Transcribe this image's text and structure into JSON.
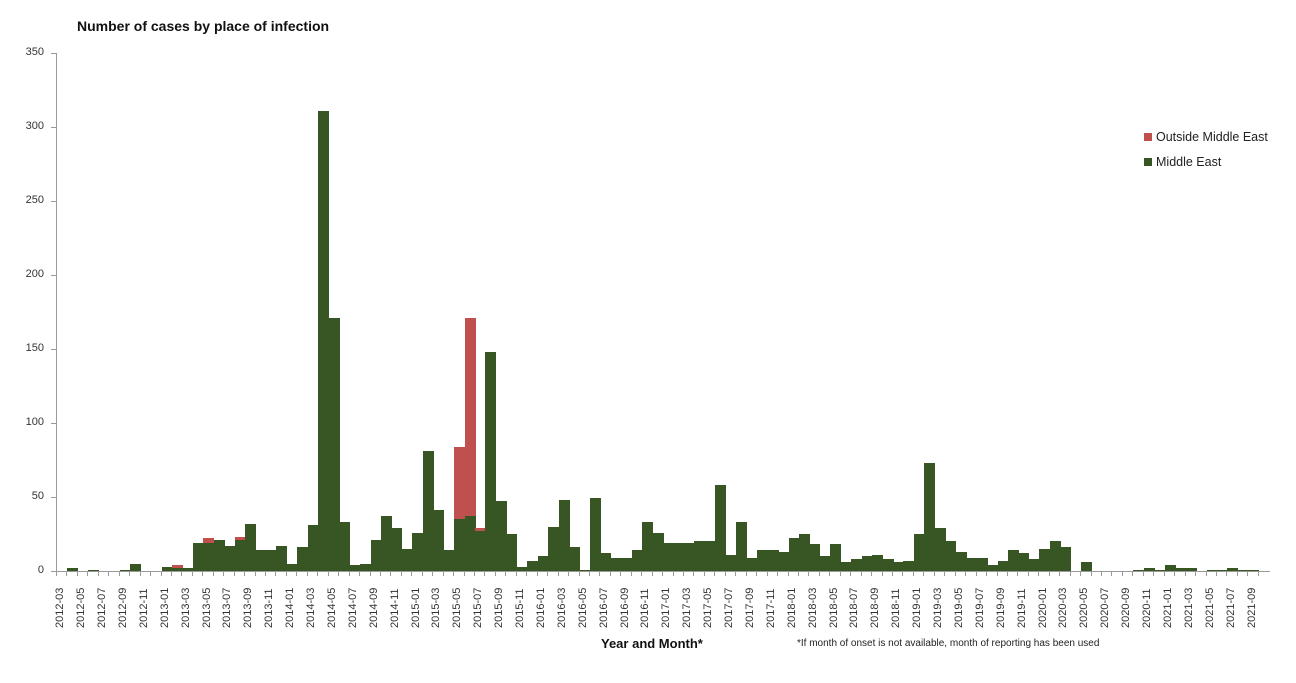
{
  "page": {
    "title": "Number of cases by place of infection",
    "x_axis_title": "Year and Month*",
    "footnote": "*If month of onset is not available, month of reporting has been used"
  },
  "legend": [
    {
      "label": "Outside Middle East",
      "color": "#c0504d"
    },
    {
      "label": "Middle East",
      "color": "#375623"
    }
  ],
  "chart_data": {
    "type": "bar",
    "stacked": true,
    "title": "Number of cases by place of infection",
    "xlabel": "Year and Month*",
    "ylabel": "",
    "ylim": [
      0,
      350
    ],
    "yticks": [
      0,
      50,
      100,
      150,
      200,
      250,
      300,
      350
    ],
    "grid": false,
    "legend_position": "right",
    "annotations": [
      "*If month of onset is not available, month of reporting has been used"
    ],
    "x_tick_labels": [
      "2012-03",
      "2012-05",
      "2012-07",
      "2012-09",
      "2012-11",
      "2013-01",
      "2013-03",
      "2013-05",
      "2013-07",
      "2013-09",
      "2013-11",
      "2014-01",
      "2014-03",
      "2014-05",
      "2014-07",
      "2014-09",
      "2014-11",
      "2015-01",
      "2015-03",
      "2015-05",
      "2015-07",
      "2015-09",
      "2015-11",
      "2016-01",
      "2016-03",
      "2016-05",
      "2016-07",
      "2016-09",
      "2016-11",
      "2017-01",
      "2017-03",
      "2017-05",
      "2017-07",
      "2017-09",
      "2017-11",
      "2018-01",
      "2018-03",
      "2018-05",
      "2018-07",
      "2018-09",
      "2018-11",
      "2019-01",
      "2019-03",
      "2019-05",
      "2019-07",
      "2019-09",
      "2019-11",
      "2020-01",
      "2020-03",
      "2020-05",
      "2020-07",
      "2020-09",
      "2020-11",
      "2021-01",
      "2021-03",
      "2021-05",
      "2021-07",
      "2021-09"
    ],
    "categories": [
      "2012-03",
      "2012-04",
      "2012-05",
      "2012-06",
      "2012-07",
      "2012-08",
      "2012-09",
      "2012-10",
      "2012-11",
      "2012-12",
      "2013-01",
      "2013-02",
      "2013-03",
      "2013-04",
      "2013-05",
      "2013-06",
      "2013-07",
      "2013-08",
      "2013-09",
      "2013-10",
      "2013-11",
      "2013-12",
      "2014-01",
      "2014-02",
      "2014-03",
      "2014-04",
      "2014-05",
      "2014-06",
      "2014-07",
      "2014-08",
      "2014-09",
      "2014-10",
      "2014-11",
      "2014-12",
      "2015-01",
      "2015-02",
      "2015-03",
      "2015-04",
      "2015-05",
      "2015-06",
      "2015-07",
      "2015-08",
      "2015-09",
      "2015-10",
      "2015-11",
      "2015-12",
      "2016-01",
      "2016-02",
      "2016-03",
      "2016-04",
      "2016-05",
      "2016-06",
      "2016-07",
      "2016-08",
      "2016-09",
      "2016-10",
      "2016-11",
      "2016-12",
      "2017-01",
      "2017-02",
      "2017-03",
      "2017-04",
      "2017-05",
      "2017-06",
      "2017-07",
      "2017-08",
      "2017-09",
      "2017-10",
      "2017-11",
      "2017-12",
      "2018-01",
      "2018-02",
      "2018-03",
      "2018-04",
      "2018-05",
      "2018-06",
      "2018-07",
      "2018-08",
      "2018-09",
      "2018-10",
      "2018-11",
      "2018-12",
      "2019-01",
      "2019-02",
      "2019-03",
      "2019-04",
      "2019-05",
      "2019-06",
      "2019-07",
      "2019-08",
      "2019-09",
      "2019-10",
      "2019-11",
      "2019-12",
      "2020-01",
      "2020-02",
      "2020-03",
      "2020-04",
      "2020-05",
      "2020-06",
      "2020-07",
      "2020-08",
      "2020-09",
      "2020-10",
      "2020-11",
      "2020-12",
      "2021-01",
      "2021-02",
      "2021-03",
      "2021-04",
      "2021-05",
      "2021-06",
      "2021-07",
      "2021-08",
      "2021-09"
    ],
    "series": [
      {
        "name": "Middle East",
        "color": "#375623",
        "values": [
          0,
          2,
          0,
          1,
          0,
          0,
          1,
          5,
          0,
          0,
          3,
          2,
          2,
          19,
          19,
          21,
          17,
          21,
          32,
          14,
          14,
          17,
          5,
          16,
          31,
          311,
          171,
          33,
          4,
          5,
          21,
          37,
          29,
          15,
          26,
          81,
          41,
          14,
          35,
          37,
          27,
          148,
          47,
          25,
          3,
          7,
          10,
          30,
          48,
          16,
          1,
          49,
          12,
          9,
          9,
          14,
          33,
          26,
          19,
          19,
          19,
          20,
          20,
          58,
          11,
          33,
          9,
          14,
          14,
          13,
          22,
          25,
          18,
          10,
          18,
          6,
          8,
          10,
          11,
          8,
          6,
          7,
          25,
          73,
          29,
          20,
          13,
          9,
          9,
          4,
          7,
          14,
          12,
          8,
          15,
          20,
          16,
          0,
          6,
          0,
          0,
          0,
          0,
          1,
          2,
          1,
          4,
          2,
          2,
          0,
          1,
          1,
          2,
          1,
          1
        ]
      },
      {
        "name": "Outside Middle East",
        "color": "#c0504d",
        "values": [
          0,
          0,
          0,
          0,
          0,
          0,
          0,
          0,
          0,
          0,
          0,
          2,
          0,
          0,
          3,
          0,
          0,
          2,
          0,
          0,
          0,
          0,
          0,
          0,
          0,
          0,
          0,
          0,
          0,
          0,
          0,
          0,
          0,
          0,
          0,
          0,
          0,
          0,
          49,
          134,
          2,
          0,
          0,
          0,
          0,
          0,
          0,
          0,
          0,
          0,
          0,
          0,
          0,
          0,
          0,
          0,
          0,
          0,
          0,
          0,
          0,
          0,
          0,
          0,
          0,
          0,
          0,
          0,
          0,
          0,
          0,
          0,
          0,
          0,
          0,
          0,
          0,
          0,
          0,
          0,
          0,
          0,
          0,
          0,
          0,
          0,
          0,
          0,
          0,
          0,
          0,
          0,
          0,
          0,
          0,
          0,
          0,
          0,
          0,
          0,
          0,
          0,
          0,
          0,
          0,
          0,
          0,
          0,
          0,
          0,
          0,
          0,
          0,
          0,
          0
        ]
      }
    ]
  }
}
